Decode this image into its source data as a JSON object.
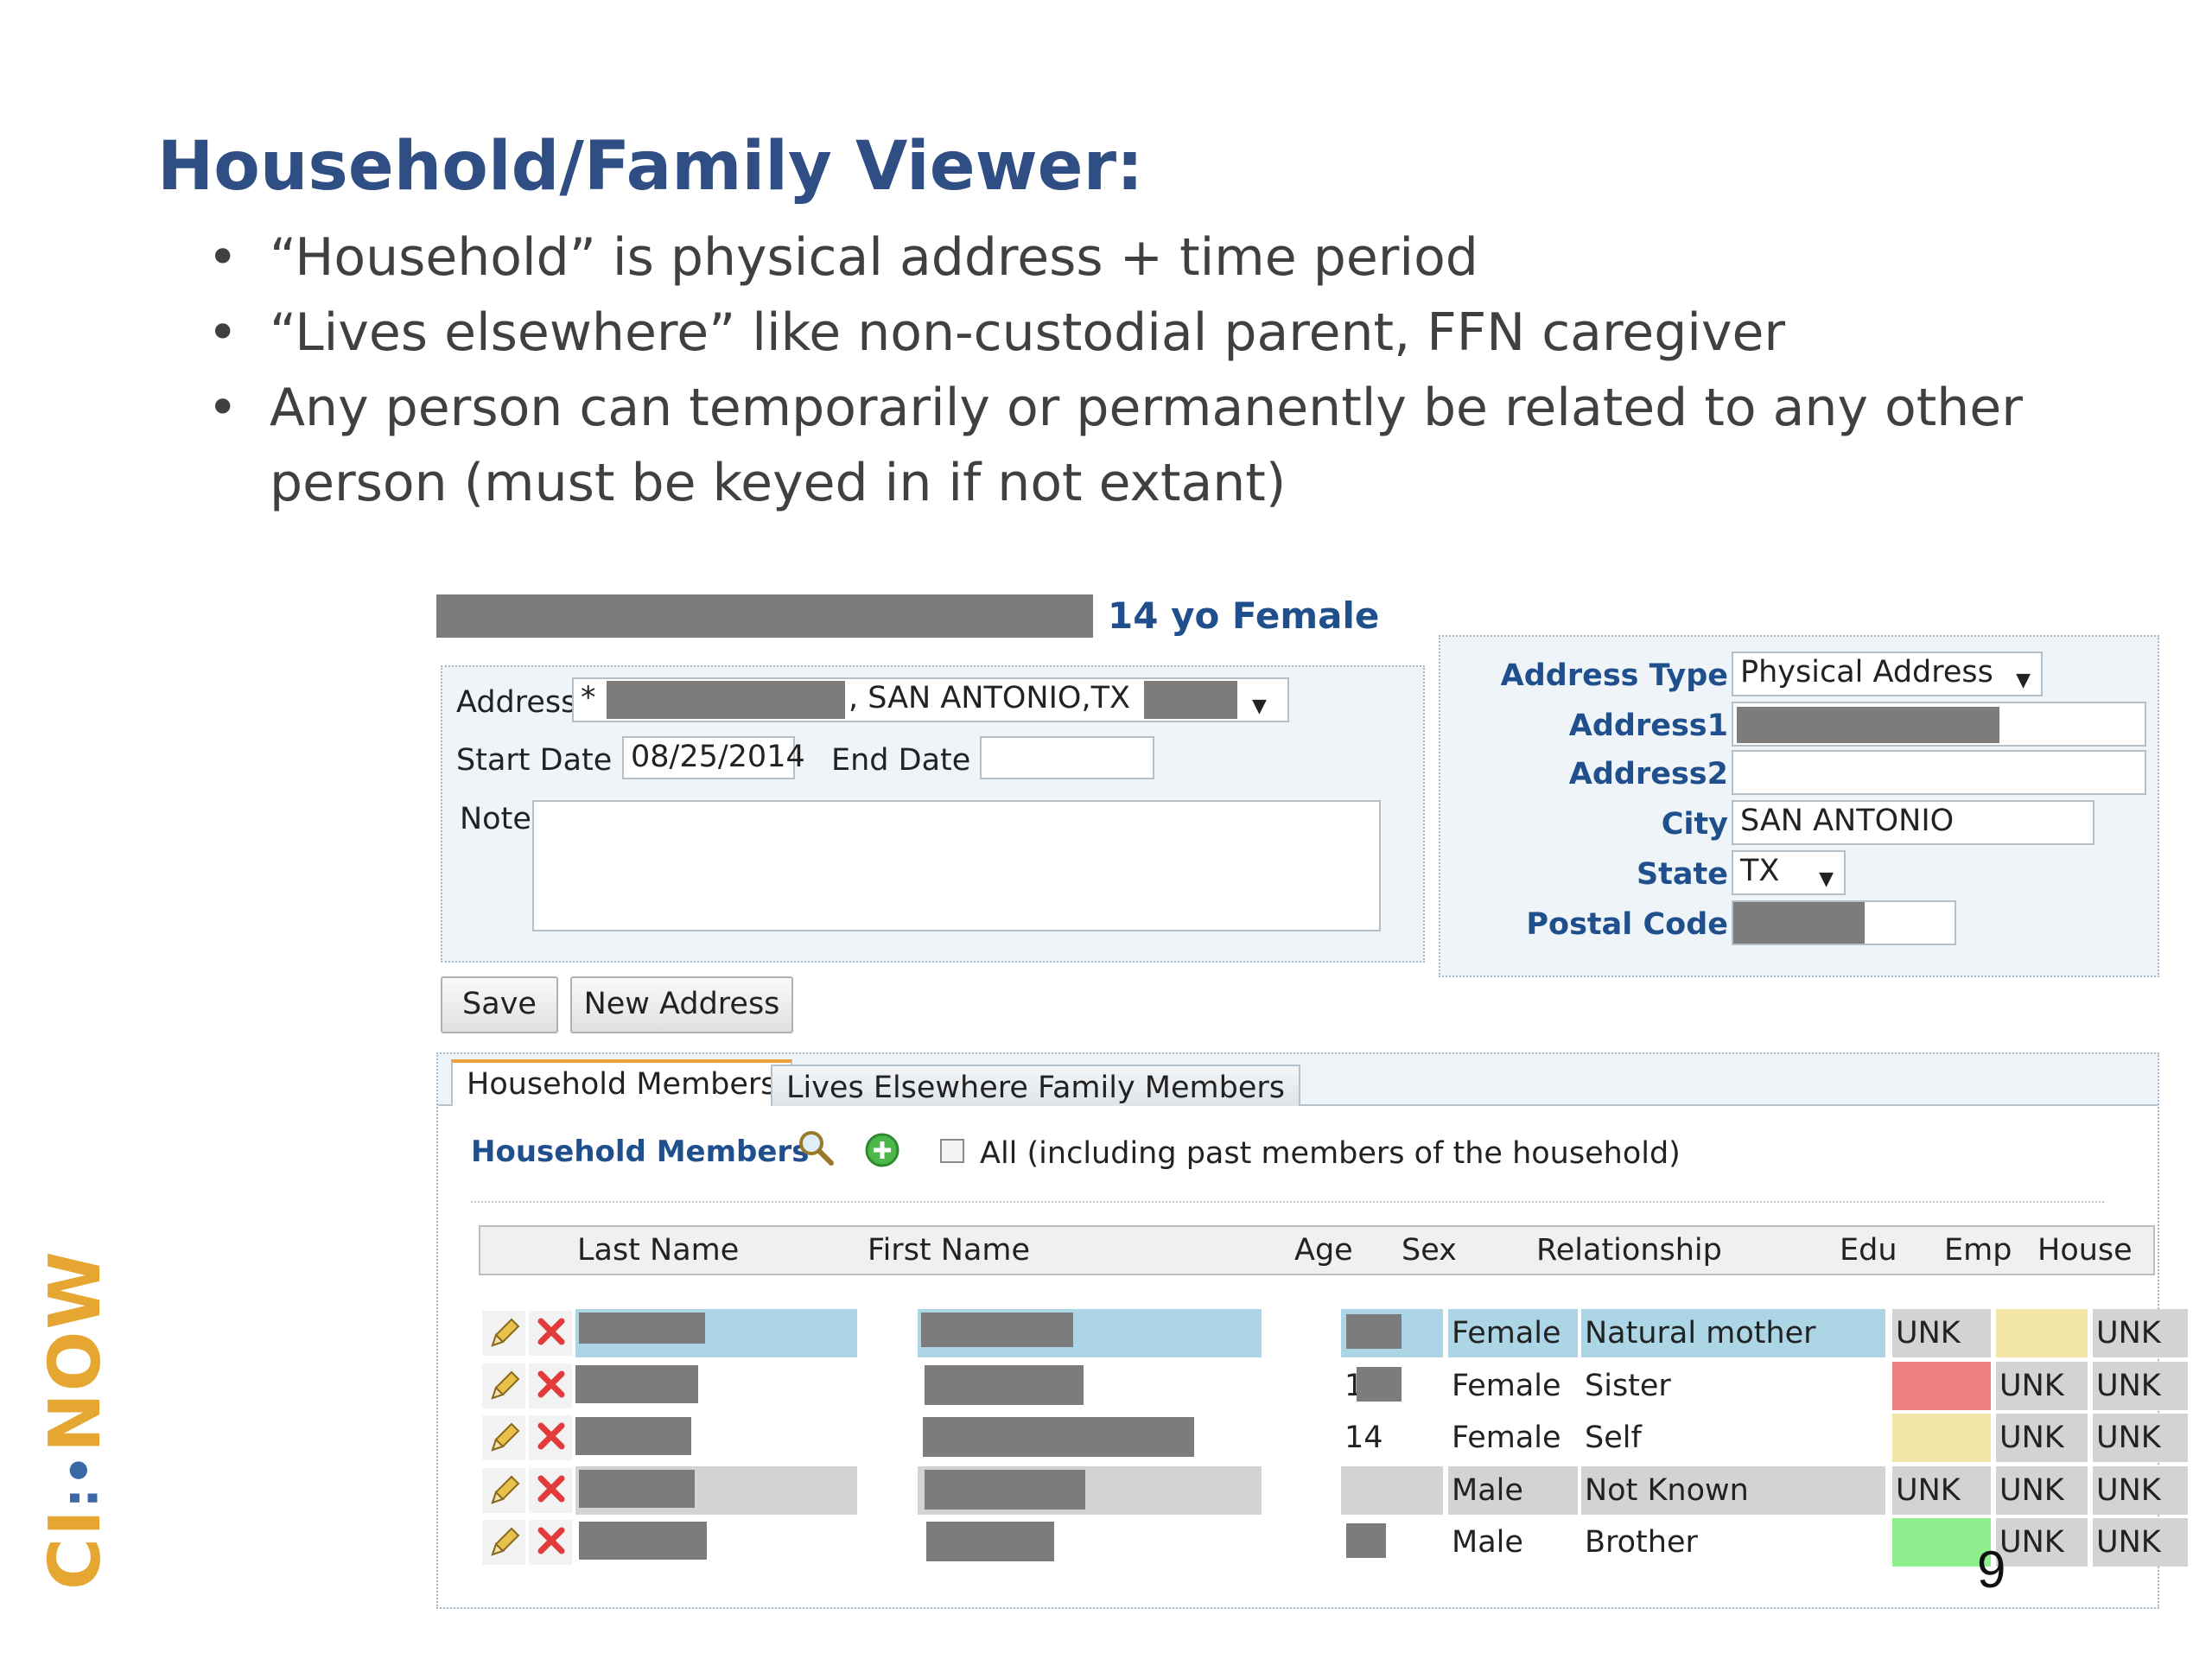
{
  "slide": {
    "title": "Household/Family Viewer:",
    "bullets": [
      "“Household” is physical address + time period",
      "“Lives elsewhere” like non-custodial parent, FFN caregiver",
      "Any person can temporarily or permanently be related to any other person (must be keyed in if not extant)"
    ],
    "logo": {
      "left": "CI",
      "right": "NOW"
    },
    "page_number": "9"
  },
  "person_header": {
    "summary": "14 yo Female"
  },
  "address_form": {
    "address_label": "Address",
    "address_prefix": "*",
    "address_value": ", SAN ANTONIO,TX",
    "start_date_label": "Start Date",
    "start_date_value": "08/25/2014",
    "end_date_label": "End Date",
    "end_date_value": "",
    "note_label": "Note",
    "note_value": ""
  },
  "address_detail": {
    "type_label": "Address Type",
    "type_value": "Physical Address",
    "address1_label": "Address1",
    "address2_label": "Address2",
    "city_label": "City",
    "city_value": "SAN ANTONIO",
    "state_label": "State",
    "state_value": "TX",
    "postal_label": "Postal Code"
  },
  "buttons": {
    "save": "Save",
    "new_address": "New Address"
  },
  "tabs": [
    {
      "label": "Household Members",
      "active": true
    },
    {
      "label": "Lives Elsewhere Family Members",
      "active": false
    }
  ],
  "members_section": {
    "title": "Household Members",
    "all_checkbox_label": "All (including past members of the household)"
  },
  "grid": {
    "columns": [
      "Last Name",
      "First Name",
      "Age",
      "Sex",
      "Relationship",
      "Edu",
      "Emp",
      "House"
    ],
    "rows": [
      {
        "age": "",
        "sex": "Female",
        "relationship": "Natural mother",
        "edu": "UNK",
        "emp": "",
        "house": "UNK"
      },
      {
        "age": "1",
        "sex": "Female",
        "relationship": "Sister",
        "edu": "",
        "emp": "UNK",
        "house": "UNK"
      },
      {
        "age": "14",
        "sex": "Female",
        "relationship": "Self",
        "edu": "",
        "emp": "UNK",
        "house": "UNK"
      },
      {
        "age": "",
        "sex": "Male",
        "relationship": "Not Known",
        "edu": "UNK",
        "emp": "UNK",
        "house": "UNK"
      },
      {
        "age": "",
        "sex": "Male",
        "relationship": "Brother",
        "edu": "",
        "emp": "UNK",
        "house": "UNK"
      }
    ]
  },
  "colors": {
    "title": "#2e4e84",
    "label_blue": "#1f4f8c",
    "row_selected": "#acd6e6",
    "unk_gray": "#d3d3d3",
    "status_yellow": "#f1e6a5",
    "status_red": "#ec7f7f",
    "status_green": "#8fef8f",
    "tab_accent": "#e8a23a"
  },
  "icons": [
    "search-icon",
    "add-icon",
    "edit-pencil-icon",
    "delete-x-icon",
    "dropdown-arrow-icon"
  ]
}
